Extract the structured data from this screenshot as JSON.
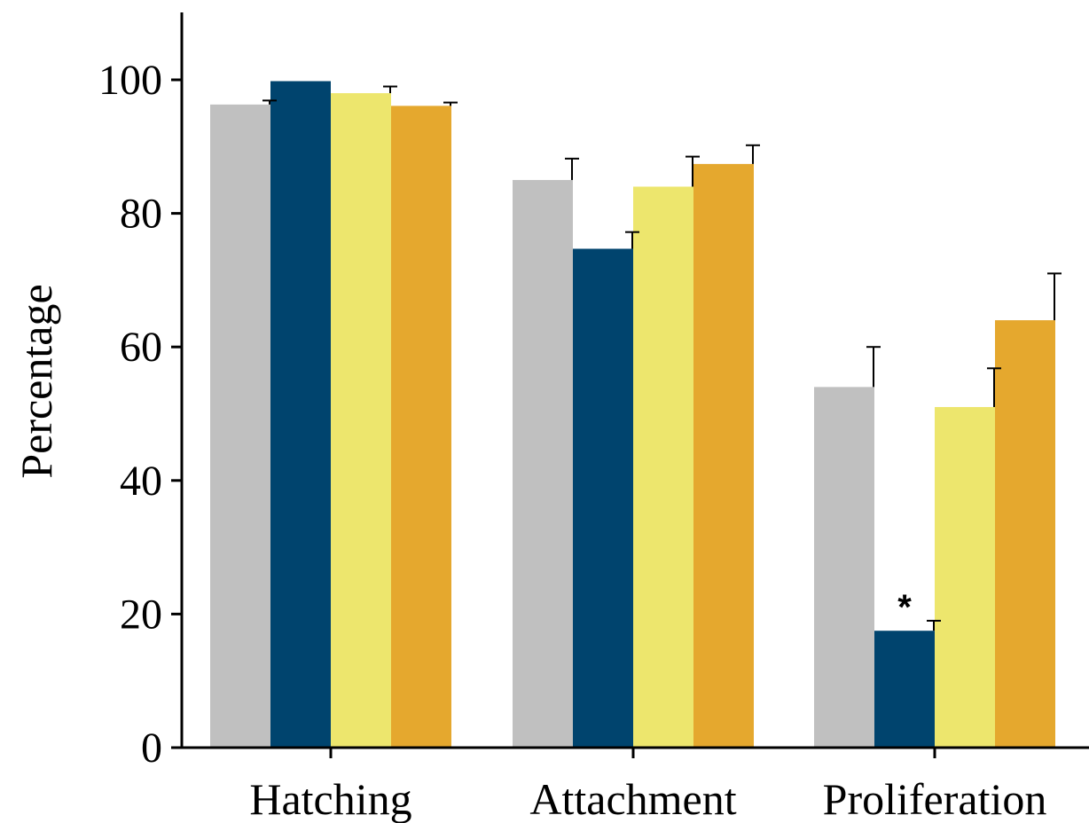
{
  "chart_data": {
    "type": "bar",
    "title": "",
    "xlabel": "",
    "ylabel": "Percentage",
    "ylim": [
      0,
      110
    ],
    "yticks": [
      0,
      20,
      40,
      60,
      80,
      100
    ],
    "grid": false,
    "categories": [
      "Hatching",
      "Attachment",
      "Proliferation"
    ],
    "series": [
      {
        "color": "#c0c0c0",
        "values": [
          96.3,
          85.0,
          54.0
        ],
        "errors": [
          0.6,
          3.2,
          6.0
        ]
      },
      {
        "color": "#00446e",
        "values": [
          99.8,
          74.7,
          17.5
        ],
        "errors": [
          0.0,
          2.5,
          1.5
        ]
      },
      {
        "color": "#ede66d",
        "values": [
          98.0,
          84.0,
          51.0
        ],
        "errors": [
          1.0,
          4.5,
          5.8
        ]
      },
      {
        "color": "#e5a82e",
        "values": [
          96.1,
          87.4,
          64.0
        ],
        "errors": [
          0.5,
          2.8,
          7.0
        ]
      }
    ],
    "annotations": [
      {
        "text": "*",
        "category_index": 2,
        "series_index": 1
      }
    ]
  }
}
